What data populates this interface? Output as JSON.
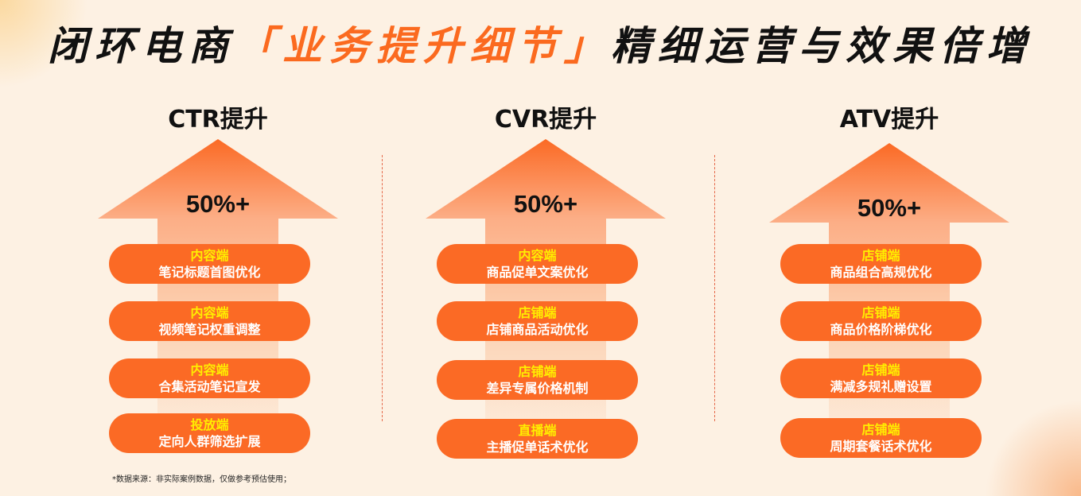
{
  "title": {
    "pre": "闭环电商",
    "highlight": "「业务提升细节」",
    "post": "精细运营与效果倍增"
  },
  "columns": [
    {
      "heading": "CTR提升",
      "value": "50%+",
      "items": [
        {
          "channel": "内容端",
          "text": "笔记标题首图优化"
        },
        {
          "channel": "内容端",
          "text": "视频笔记权重调整"
        },
        {
          "channel": "内容端",
          "text": "合集活动笔记宣发"
        },
        {
          "channel": "投放端",
          "text": "定向人群筛选扩展"
        }
      ]
    },
    {
      "heading": "CVR提升",
      "value": "50%+",
      "items": [
        {
          "channel": "内容端",
          "text": "商品促单文案优化"
        },
        {
          "channel": "店铺端",
          "text": "店铺商品活动优化"
        },
        {
          "channel": "店铺端",
          "text": "差异专属价格机制"
        },
        {
          "channel": "直播端",
          "text": "主播促单话术优化"
        }
      ]
    },
    {
      "heading": "ATV提升",
      "value": "50%+",
      "items": [
        {
          "channel": "店铺端",
          "text": "商品组合高规优化"
        },
        {
          "channel": "店铺端",
          "text": "商品价格阶梯优化"
        },
        {
          "channel": "店铺端",
          "text": "满减多规礼赠设置"
        },
        {
          "channel": "店铺端",
          "text": "周期套餐话术优化"
        }
      ]
    }
  ],
  "footnote": "*数据来源：非实际案例数据，仅做参考预估使用；",
  "colors": {
    "accent": "#fb6a25",
    "channel": "#ffee00",
    "background": "#fdf1e3"
  }
}
